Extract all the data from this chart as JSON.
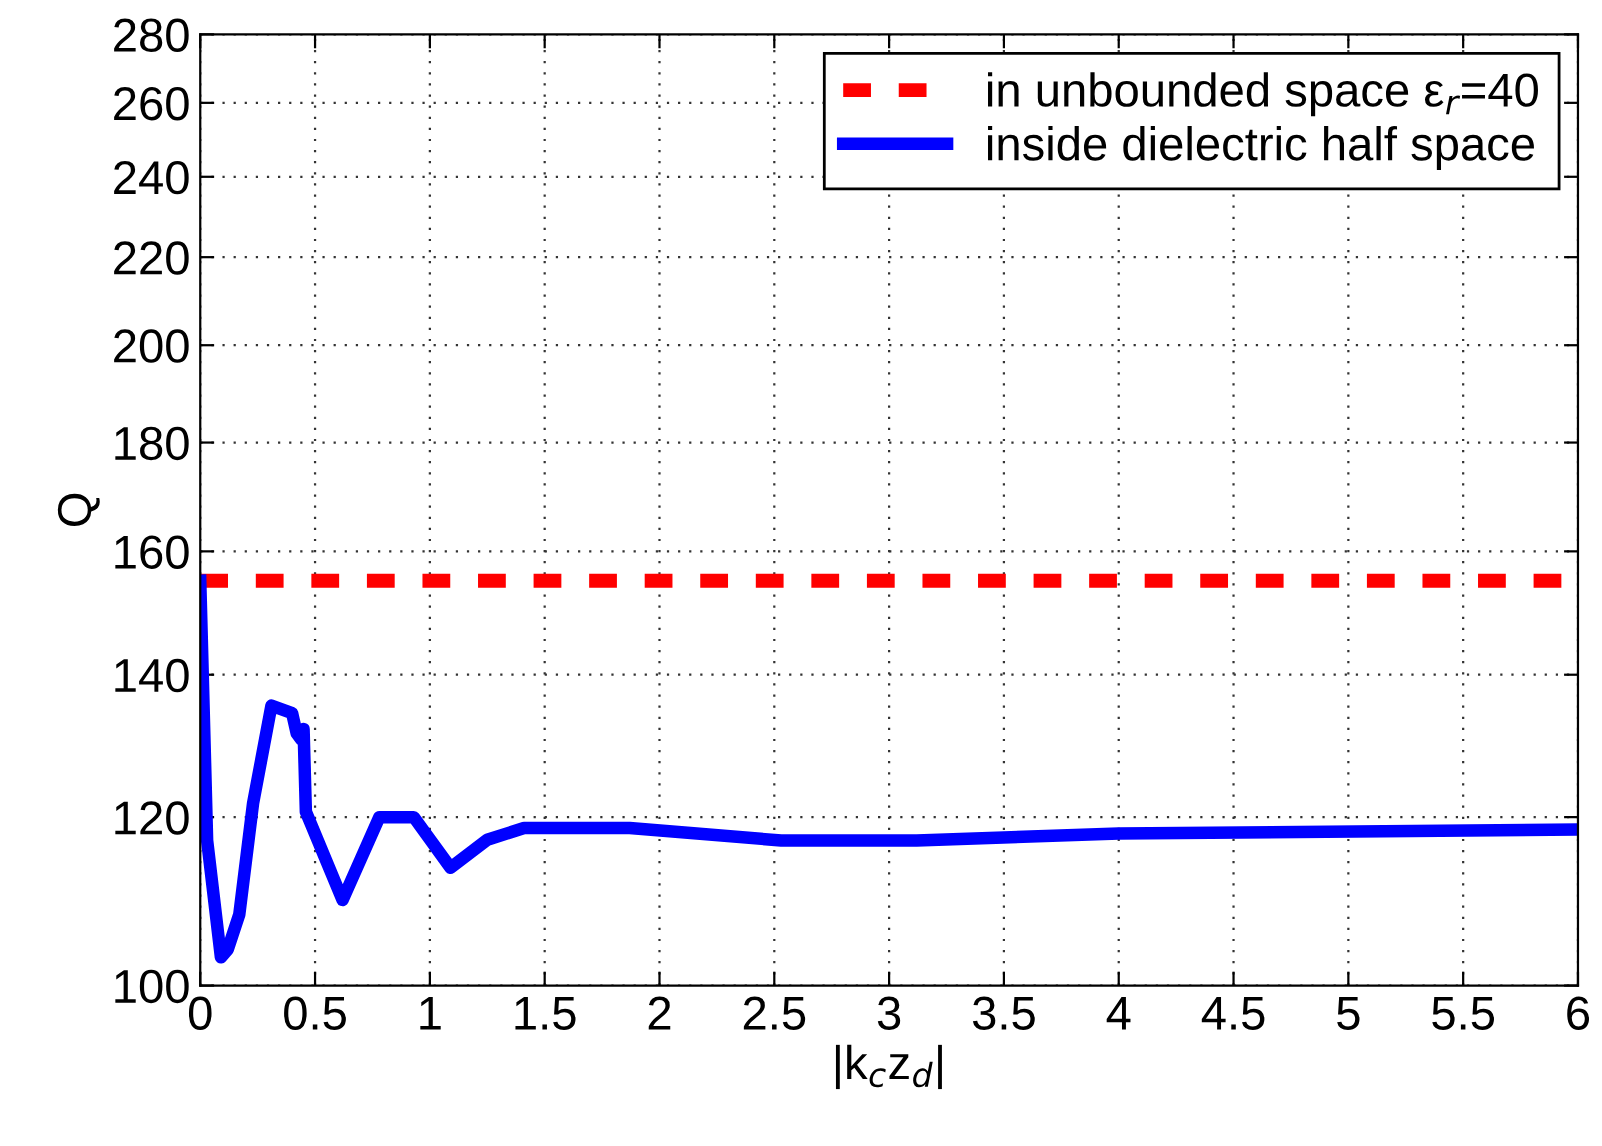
{
  "chart_data": {
    "type": "line",
    "xlabel": "|k$_{c}$z$_{d}$|",
    "ylabel": "Q",
    "log": "y",
    "xlim": [
      0,
      6
    ],
    "ylim": [
      100,
      280
    ],
    "xticks": [
      0,
      0.5,
      1,
      1.5,
      2,
      2.5,
      3,
      3.5,
      4,
      4.5,
      5,
      5.5,
      6
    ],
    "yticks": [
      100,
      120,
      140,
      160,
      180,
      200,
      220,
      240,
      260,
      280
    ],
    "grid": true,
    "legend": "top right",
    "series": [
      {
        "name": "in unbounded space ε$_{r}$=40",
        "color": "#ff0000",
        "line_style": "dashed",
        "x": [
          0,
          6
        ],
        "values": [
          155,
          155
        ]
      },
      {
        "name": "inside dielectric half space",
        "color": "#0000ff",
        "line_style": "solid",
        "x": [
          0,
          0.03,
          0.09,
          0.12,
          0.17,
          0.23,
          0.31,
          0.4,
          0.42,
          0.44,
          0.45,
          0.46,
          0.62,
          0.78,
          0.93,
          1.09,
          1.25,
          1.41,
          1.87,
          2.53,
          3.12,
          4.0,
          6.0
        ],
        "values": [
          155,
          117,
          103.1,
          104,
          108,
          121.8,
          135.4,
          134.3,
          131.4,
          130.5,
          132,
          120.7,
          109.7,
          120,
          120,
          113.6,
          117.1,
          118.6,
          118.6,
          117,
          117,
          117.9,
          118.4
        ]
      }
    ]
  }
}
